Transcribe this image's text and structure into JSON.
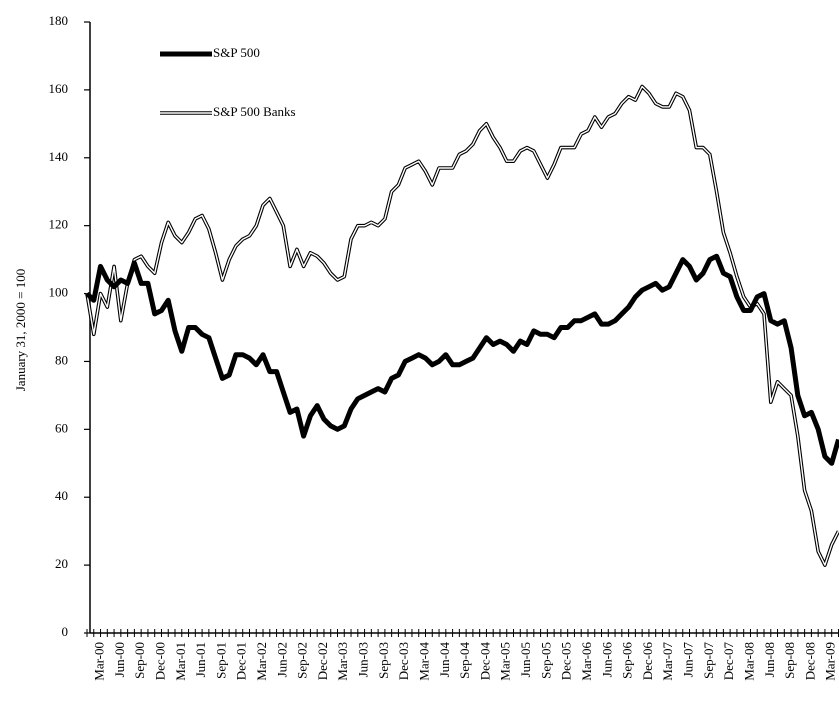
{
  "chart_data": {
    "type": "line",
    "ylabel": "January 31, 2000 = 100",
    "categories": [
      null,
      null,
      "Mar-00",
      null,
      null,
      "Jun-00",
      null,
      null,
      "Sep-00",
      null,
      null,
      "Dec-00",
      null,
      null,
      "Mar-01",
      null,
      null,
      "Jun-01",
      null,
      null,
      "Sep-01",
      null,
      null,
      "Dec-01",
      null,
      null,
      "Mar-02",
      null,
      null,
      "Jun-02",
      null,
      null,
      "Sep-02",
      null,
      null,
      "Dec-02",
      null,
      null,
      "Mar-03",
      null,
      null,
      "Jun-03",
      null,
      null,
      "Sep-03",
      null,
      null,
      "Dec-03",
      null,
      null,
      "Mar-04",
      null,
      null,
      "Jun-04",
      null,
      null,
      "Sep-04",
      null,
      null,
      "Dec-04",
      null,
      null,
      "Mar-05",
      null,
      null,
      "Jun-05",
      null,
      null,
      "Sep-05",
      null,
      null,
      "Dec-05",
      null,
      null,
      "Mar-06",
      null,
      null,
      "Jun-06",
      null,
      null,
      "Sep-06",
      null,
      null,
      "Dec-06",
      null,
      null,
      "Mar-07",
      null,
      null,
      "Jun-07",
      null,
      null,
      "Sep-07",
      null,
      null,
      "Dec-07",
      null,
      null,
      "Mar-08",
      null,
      null,
      "Jun-08",
      null,
      null,
      "Sep-08",
      null,
      null,
      "Dec-08",
      null,
      null,
      "Mar-09",
      null
    ],
    "series": [
      {
        "name": "S&P 500",
        "color": "#000000",
        "values": [
          100,
          98,
          108,
          104,
          102,
          104,
          103,
          109,
          103,
          103,
          94,
          95,
          98,
          89,
          83,
          90,
          90,
          88,
          87,
          81,
          75,
          76,
          82,
          82,
          81,
          79,
          82,
          77,
          77,
          71,
          65,
          66,
          58,
          64,
          67,
          63,
          61,
          60,
          61,
          66,
          69,
          70,
          71,
          72,
          71,
          75,
          76,
          80,
          81,
          82,
          81,
          79,
          80,
          82,
          79,
          79,
          80,
          81,
          84,
          87,
          85,
          86,
          85,
          83,
          86,
          85,
          89,
          88,
          88,
          87,
          90,
          90,
          92,
          92,
          93,
          94,
          91,
          91,
          92,
          94,
          96,
          99,
          101,
          102,
          103,
          101,
          102,
          106,
          110,
          108,
          104,
          106,
          110,
          111,
          106,
          105,
          99,
          95,
          95,
          99,
          100,
          92,
          91,
          92,
          84,
          70,
          64,
          65,
          60,
          52,
          50,
          57
        ]
      },
      {
        "name": "S&P 500 Banks",
        "color": "#ffffff",
        "values": [
          100,
          88,
          100,
          96,
          108,
          92,
          103,
          110,
          111,
          108,
          106,
          115,
          121,
          117,
          115,
          118,
          122,
          123,
          119,
          112,
          104,
          110,
          114,
          116,
          117,
          120,
          126,
          128,
          124,
          120,
          108,
          113,
          108,
          112,
          111,
          109,
          106,
          104,
          105,
          116,
          120,
          120,
          121,
          120,
          122,
          130,
          132,
          137,
          138,
          139,
          136,
          132,
          137,
          137,
          137,
          141,
          142,
          144,
          148,
          150,
          146,
          143,
          139,
          139,
          142,
          143,
          142,
          138,
          134,
          138,
          143,
          143,
          143,
          147,
          148,
          152,
          149,
          152,
          153,
          156,
          158,
          157,
          161,
          159,
          156,
          155,
          155,
          159,
          158,
          154,
          143,
          143,
          141,
          130,
          118,
          112,
          105,
          99,
          96,
          97,
          94,
          68,
          74,
          72,
          70,
          58,
          42,
          36,
          24,
          20,
          26,
          30
        ]
      }
    ],
    "ylim": [
      0,
      180
    ],
    "yticks": [
      0,
      20,
      40,
      60,
      80,
      100,
      120,
      140,
      160,
      180
    ],
    "legend": "upper left"
  }
}
